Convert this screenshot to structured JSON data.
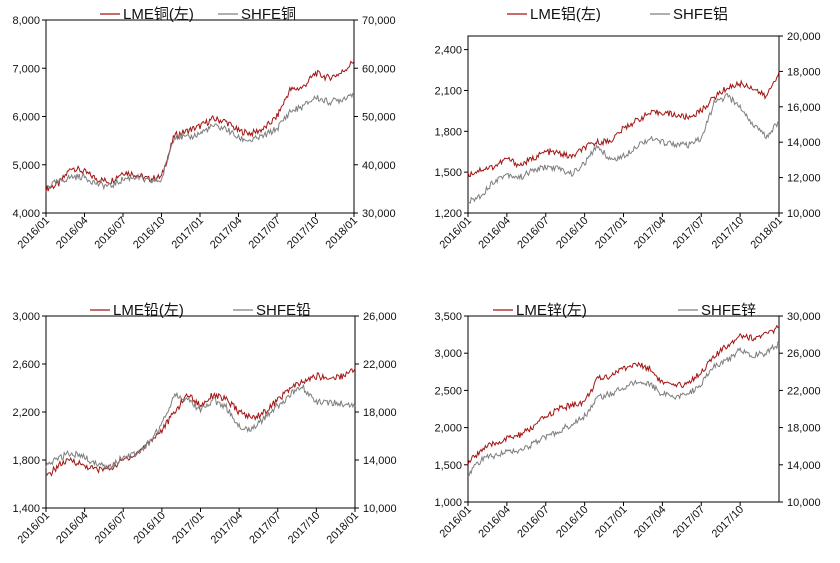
{
  "colors": {
    "lme": "#a31515",
    "shfe": "#7f7f7f"
  },
  "chart_data": [
    {
      "type": "line",
      "legend": [
        "LME铜(左)",
        "SHFE铜"
      ],
      "x_ticks": [
        "2016/01",
        "2016/04",
        "2016/07",
        "2016/10",
        "2017/01",
        "2017/04",
        "2017/07",
        "2017/10",
        "2018/01"
      ],
      "y_left": {
        "ticks": [
          "4,000",
          "5,000",
          "6,000",
          "7,000",
          "8,000"
        ],
        "range": [
          4000,
          8000
        ]
      },
      "y_right": {
        "ticks": [
          "30,000",
          "40,000",
          "50,000",
          "60,000",
          "70,000"
        ],
        "range": [
          30000,
          70000
        ]
      },
      "series": [
        {
          "name": "LME铜(左)",
          "axis": "left",
          "x": [
            "2016/01",
            "2016/02",
            "2016/03",
            "2016/04",
            "2016/05",
            "2016/06",
            "2016/07",
            "2016/08",
            "2016/09",
            "2016/10",
            "2016/11",
            "2016/12",
            "2017/01",
            "2017/02",
            "2017/03",
            "2017/04",
            "2017/05",
            "2017/06",
            "2017/07",
            "2017/08",
            "2017/09",
            "2017/10",
            "2017/11",
            "2017/12",
            "2018/01"
          ],
          "values": [
            4500,
            4600,
            4950,
            4850,
            4700,
            4650,
            4850,
            4800,
            4700,
            4750,
            5600,
            5700,
            5800,
            5950,
            5900,
            5700,
            5650,
            5750,
            6000,
            6550,
            6600,
            6900,
            6800,
            6900,
            7150
          ]
        },
        {
          "name": "SHFE铜",
          "axis": "right",
          "x": [
            "2016/01",
            "2016/02",
            "2016/03",
            "2016/04",
            "2016/05",
            "2016/06",
            "2016/07",
            "2016/08",
            "2016/09",
            "2016/10",
            "2016/11",
            "2016/12",
            "2017/01",
            "2017/02",
            "2017/03",
            "2017/04",
            "2017/05",
            "2017/06",
            "2017/07",
            "2017/08",
            "2017/09",
            "2017/10",
            "2017/11",
            "2017/12",
            "2018/01"
          ],
          "values": [
            35500,
            36500,
            37500,
            37500,
            36000,
            35500,
            37000,
            37500,
            36500,
            36800,
            46000,
            45500,
            46500,
            48000,
            47500,
            45500,
            45000,
            46000,
            47500,
            51000,
            52000,
            54000,
            53000,
            53500,
            55000
          ]
        }
      ]
    },
    {
      "type": "line",
      "legend": [
        "LME铝(左)",
        "SHFE铝"
      ],
      "x_ticks": [
        "2016/01",
        "2016/04",
        "2016/07",
        "2016/10",
        "2017/01",
        "2017/04",
        "2017/07",
        "2017/10",
        "2018/01"
      ],
      "y_left": {
        "ticks": [
          "1,200",
          "1,500",
          "1,800",
          "2,100",
          "2,400"
        ],
        "range": [
          1200,
          2500
        ]
      },
      "y_right": {
        "ticks": [
          "10,000",
          "12,000",
          "14,000",
          "16,000",
          "18,000",
          "20,000"
        ],
        "range": [
          10000,
          20000
        ]
      },
      "series": [
        {
          "name": "LME铝(左)",
          "axis": "left",
          "x": [
            "2016/01",
            "2016/02",
            "2016/03",
            "2016/04",
            "2016/05",
            "2016/06",
            "2016/07",
            "2016/08",
            "2016/09",
            "2016/10",
            "2016/11",
            "2016/12",
            "2017/01",
            "2017/02",
            "2017/03",
            "2017/04",
            "2017/05",
            "2017/06",
            "2017/07",
            "2017/08",
            "2017/09",
            "2017/10",
            "2017/11",
            "2017/12",
            "2018/01"
          ],
          "values": [
            1480,
            1520,
            1540,
            1600,
            1550,
            1600,
            1650,
            1640,
            1610,
            1680,
            1720,
            1730,
            1820,
            1880,
            1930,
            1940,
            1920,
            1900,
            1950,
            2050,
            2120,
            2150,
            2120,
            2050,
            2240
          ]
        },
        {
          "name": "SHFE铝",
          "axis": "right",
          "x": [
            "2016/01",
            "2016/02",
            "2016/03",
            "2016/04",
            "2016/05",
            "2016/06",
            "2016/07",
            "2016/08",
            "2016/09",
            "2016/10",
            "2016/11",
            "2016/12",
            "2017/01",
            "2017/02",
            "2017/03",
            "2017/04",
            "2017/05",
            "2017/06",
            "2017/07",
            "2017/08",
            "2017/09",
            "2017/10",
            "2017/11",
            "2017/12",
            "2018/01"
          ],
          "values": [
            10600,
            11000,
            11800,
            12200,
            12000,
            12400,
            12600,
            12500,
            12200,
            12800,
            13800,
            13000,
            13200,
            13800,
            14200,
            14000,
            13900,
            13800,
            14200,
            16200,
            16600,
            16000,
            15000,
            14300,
            15200
          ]
        }
      ]
    },
    {
      "type": "line",
      "legend": [
        "LME铅(左)",
        "SHFE铅"
      ],
      "x_ticks": [
        "2016/01",
        "2016/04",
        "2016/07",
        "2016/10",
        "2017/01",
        "2017/04",
        "2017/07",
        "2017/10",
        "2018/01"
      ],
      "y_left": {
        "ticks": [
          "1,400",
          "1,800",
          "2,200",
          "2,600",
          "3,000"
        ],
        "range": [
          1400,
          3000
        ]
      },
      "y_right": {
        "ticks": [
          "10,000",
          "14,000",
          "18,000",
          "22,000",
          "26,000"
        ],
        "range": [
          10000,
          26000
        ]
      },
      "series": [
        {
          "name": "LME铅(左)",
          "axis": "left",
          "x": [
            "2016/01",
            "2016/02",
            "2016/03",
            "2016/04",
            "2016/05",
            "2016/06",
            "2016/07",
            "2016/08",
            "2016/09",
            "2016/10",
            "2016/11",
            "2016/12",
            "2017/01",
            "2017/02",
            "2017/03",
            "2017/04",
            "2017/05",
            "2017/06",
            "2017/07",
            "2017/08",
            "2017/09",
            "2017/10",
            "2017/11",
            "2017/12",
            "2018/01"
          ],
          "values": [
            1650,
            1760,
            1800,
            1750,
            1720,
            1730,
            1800,
            1850,
            1950,
            2050,
            2200,
            2350,
            2250,
            2350,
            2300,
            2200,
            2150,
            2200,
            2300,
            2400,
            2450,
            2500,
            2480,
            2500,
            2560
          ]
        },
        {
          "name": "SHFE铅",
          "axis": "right",
          "x": [
            "2016/01",
            "2016/02",
            "2016/03",
            "2016/04",
            "2016/05",
            "2016/06",
            "2016/07",
            "2016/08",
            "2016/09",
            "2016/10",
            "2016/11",
            "2016/12",
            "2017/01",
            "2017/02",
            "2017/03",
            "2017/04",
            "2017/05",
            "2017/06",
            "2017/07",
            "2017/08",
            "2017/09",
            "2017/10",
            "2017/11",
            "2017/12",
            "2018/01"
          ],
          "values": [
            13400,
            14200,
            14600,
            14200,
            13600,
            13500,
            14200,
            14500,
            15400,
            17000,
            19500,
            19000,
            18200,
            19000,
            18400,
            16800,
            16600,
            17500,
            18500,
            19500,
            20000,
            18800,
            18800,
            18700,
            18500
          ]
        }
      ]
    },
    {
      "type": "line",
      "legend": [
        "LME锌(左)",
        "SHFE锌"
      ],
      "x_ticks": [
        "2016/01",
        "2016/04",
        "2016/07",
        "2016/10",
        "2017/01",
        "2017/04",
        "2017/07",
        "2017/10"
      ],
      "y_left": {
        "ticks": [
          "1,000",
          "1,500",
          "2,000",
          "2,500",
          "3,000",
          "3,500"
        ],
        "range": [
          1000,
          3500
        ]
      },
      "y_right": {
        "ticks": [
          "10,000",
          "14,000",
          "18,000",
          "22,000",
          "26,000",
          "30,000"
        ],
        "range": [
          10000,
          30000
        ]
      },
      "series": [
        {
          "name": "LME锌(左)",
          "axis": "left",
          "x": [
            "2016/01",
            "2016/02",
            "2016/03",
            "2016/04",
            "2016/05",
            "2016/06",
            "2016/07",
            "2016/08",
            "2016/09",
            "2016/10",
            "2016/11",
            "2016/12",
            "2017/01",
            "2017/02",
            "2017/03",
            "2017/04",
            "2017/05",
            "2017/06",
            "2017/07",
            "2017/08",
            "2017/09",
            "2017/10",
            "2017/11",
            "2017/12",
            "2018/01"
          ],
          "values": [
            1520,
            1700,
            1780,
            1850,
            1900,
            2000,
            2150,
            2250,
            2300,
            2350,
            2650,
            2700,
            2800,
            2850,
            2800,
            2600,
            2550,
            2600,
            2750,
            2950,
            3100,
            3250,
            3200,
            3250,
            3350
          ]
        },
        {
          "name": "SHFE锌",
          "axis": "right",
          "x": [
            "2016/01",
            "2016/02",
            "2016/03",
            "2016/04",
            "2016/05",
            "2016/06",
            "2016/07",
            "2016/08",
            "2016/09",
            "2016/10",
            "2016/11",
            "2016/12",
            "2017/01",
            "2017/02",
            "2017/03",
            "2017/04",
            "2017/05",
            "2017/06",
            "2017/07",
            "2017/08",
            "2017/09",
            "2017/10",
            "2017/11",
            "2017/12",
            "2018/01"
          ],
          "values": [
            13000,
            14500,
            15000,
            15400,
            15600,
            16200,
            17000,
            17600,
            18400,
            19200,
            21200,
            21600,
            22400,
            22800,
            22800,
            21600,
            21200,
            21600,
            22800,
            24500,
            25200,
            26400,
            25800,
            26000,
            27000
          ]
        }
      ]
    }
  ]
}
